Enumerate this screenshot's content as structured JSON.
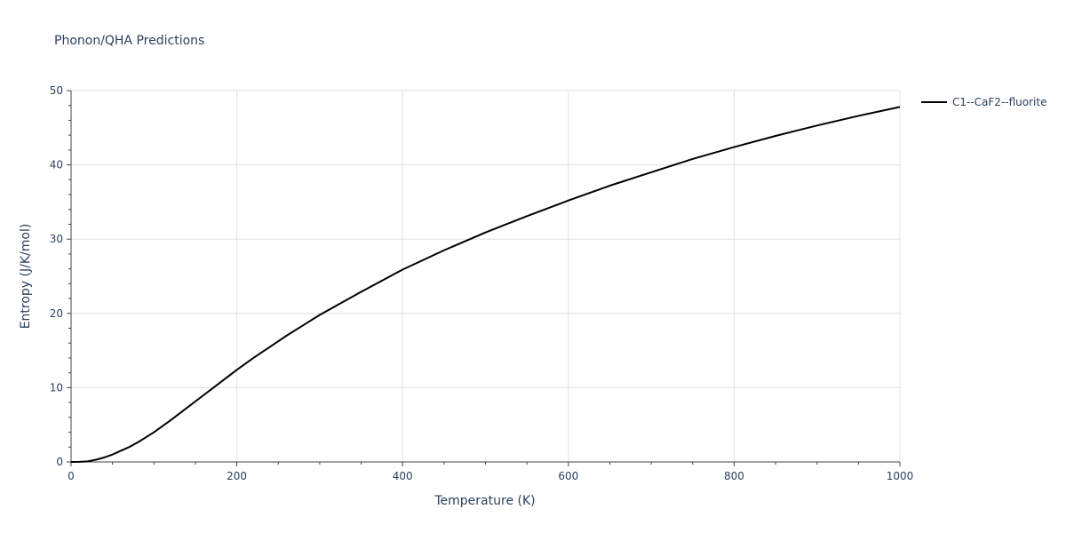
{
  "chart_data": {
    "type": "line",
    "title": "Phonon/QHA Predictions",
    "xlabel": "Temperature (K)",
    "ylabel": "Entropy (J/K/mol)",
    "xlim": [
      0,
      1000
    ],
    "ylim": [
      0,
      50
    ],
    "x_ticks": [
      0,
      200,
      400,
      600,
      800,
      1000
    ],
    "y_ticks": [
      0,
      10,
      20,
      30,
      40,
      50
    ],
    "grid": true,
    "legend_position": "top-right",
    "series": [
      {
        "name": "C1--CaF2--fluorite",
        "color": "#000000",
        "x": [
          0,
          10,
          20,
          30,
          40,
          50,
          60,
          70,
          80,
          90,
          100,
          120,
          140,
          160,
          180,
          200,
          220,
          240,
          260,
          280,
          300,
          350,
          400,
          450,
          500,
          550,
          600,
          650,
          700,
          750,
          800,
          850,
          900,
          950,
          1000
        ],
        "y": [
          0,
          0.01,
          0.08,
          0.3,
          0.6,
          1.0,
          1.5,
          2.0,
          2.6,
          3.3,
          4.0,
          5.6,
          7.3,
          9.0,
          10.7,
          12.4,
          14.0,
          15.5,
          17.0,
          18.4,
          19.8,
          22.9,
          25.9,
          28.5,
          30.9,
          33.1,
          35.2,
          37.2,
          39.0,
          40.8,
          42.4,
          43.9,
          45.3,
          46.6,
          47.8
        ]
      }
    ]
  }
}
